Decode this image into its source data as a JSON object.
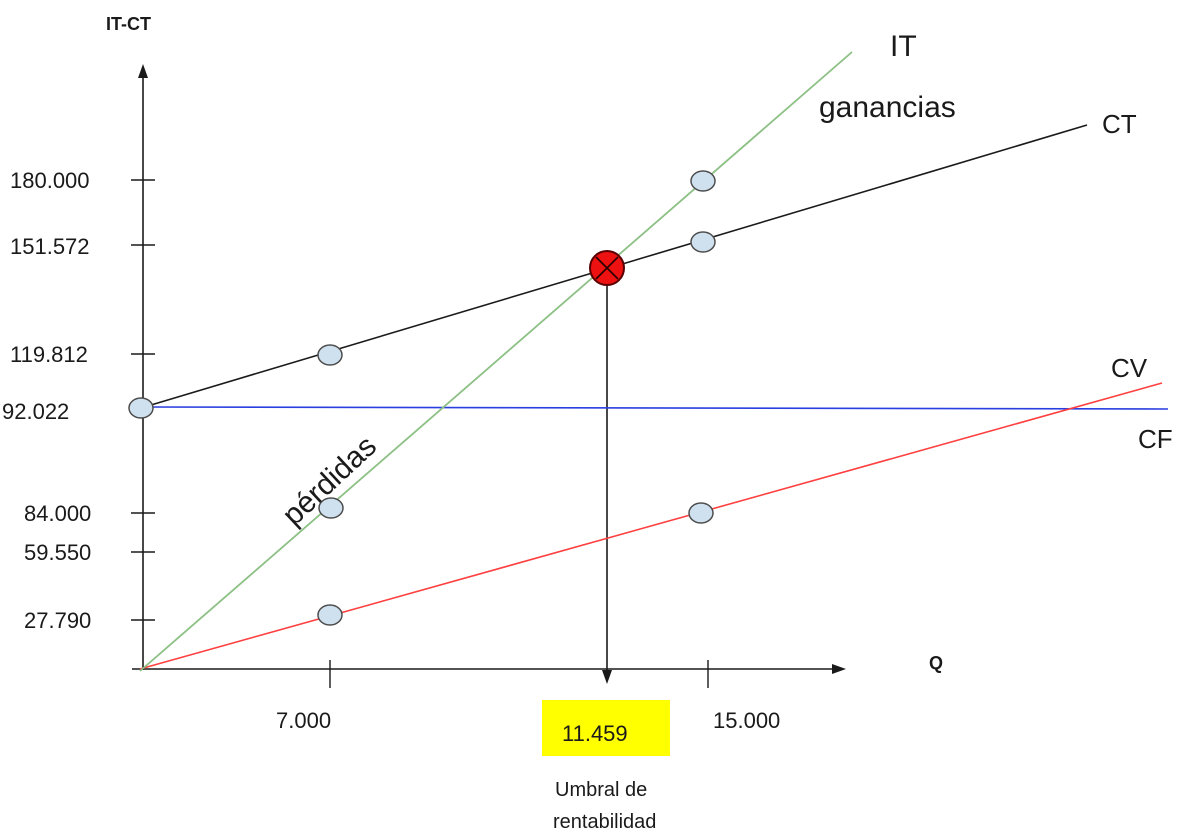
{
  "axes": {
    "y_title": "IT-CT",
    "x_title": "Q"
  },
  "y_ticks": [
    "180.000",
    "151.572",
    "119.812",
    "92.022",
    "84.000",
    "59.550",
    "27.790"
  ],
  "x_ticks": [
    "7.000",
    "15.000"
  ],
  "breakeven": {
    "value": "11.459",
    "caption_line1": "Umbral de",
    "caption_line2": "rentabilidad"
  },
  "lines": {
    "it": "IT",
    "ct": "CT",
    "cv": "CV",
    "cf": "CF"
  },
  "regions": {
    "profit": "ganancias",
    "loss": "pérdidas"
  },
  "colors": {
    "it_line": "#8cc084",
    "ct_line": "#1a1a1a",
    "cv_line": "#ff4040",
    "cf_line": "#2a3fe0",
    "point_fill": "#cfe0ef",
    "breakeven_fill": "#ee1111",
    "highlight": "#ffff00"
  }
}
